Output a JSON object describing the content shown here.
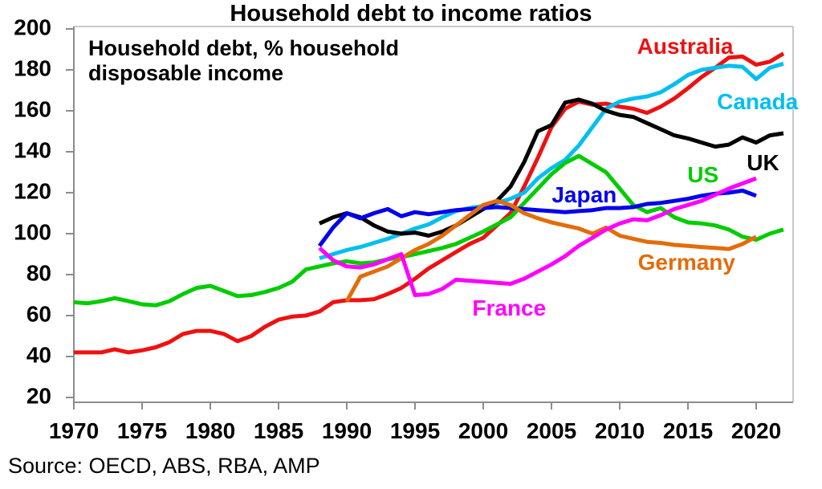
{
  "title": "Household debt to income ratios",
  "subtitle": {
    "line1": "Household debt, % household",
    "line2": "disposable income"
  },
  "source": "Source: OECD, ABS, RBA, AMP",
  "chart_data": {
    "type": "line",
    "title": "Household debt to income ratios",
    "annotation": "Household debt, % household disposable income",
    "xlabel": "",
    "ylabel": "Household debt, % household disposable income",
    "xlim": [
      1970,
      2022.7
    ],
    "ylim": [
      20,
      200
    ],
    "x_ticks": [
      1970,
      1975,
      1980,
      1985,
      1990,
      1995,
      2000,
      2005,
      2010,
      2015,
      2020
    ],
    "y_ticks": [
      20,
      40,
      60,
      80,
      100,
      120,
      140,
      160,
      180,
      200
    ],
    "grid": false,
    "legend_position": "inline-labels",
    "axis_color": "#8c8c8c",
    "border_color": "#c9c9c9",
    "series": [
      {
        "name": "Australia",
        "color": "#EE1111",
        "start_year": 1970,
        "label": {
          "year": 2014.8,
          "value": 191.5
        },
        "values": [
          42,
          42,
          42,
          43.5,
          42,
          43,
          44.5,
          47,
          51,
          52.5,
          52.5,
          51,
          47.5,
          50,
          54.5,
          58,
          59.5,
          60,
          62,
          66.5,
          67.5,
          67.5,
          68,
          70.5,
          73.5,
          78,
          83,
          87,
          91,
          95,
          98,
          104,
          110,
          123,
          137,
          152,
          161,
          164.5,
          163,
          163.5,
          162,
          161,
          159,
          162,
          166,
          171,
          176.5,
          181,
          186,
          186.5,
          182.5,
          184,
          188
        ]
      },
      {
        "name": "Canada",
        "color": "#00BFF0",
        "start_year": 1988,
        "label": {
          "year": 2020.1,
          "value": 164.5
        },
        "values": [
          88,
          90,
          92,
          93.5,
          95.5,
          97.5,
          100,
          102.5,
          104.5,
          108,
          111,
          112.5,
          113.5,
          115,
          117,
          120,
          127,
          132,
          136,
          143,
          152,
          161,
          164.5,
          166,
          167,
          169,
          173,
          177.5,
          180,
          181,
          182,
          181.5,
          175.5,
          181,
          183
        ]
      },
      {
        "name": "UK",
        "color": "#000000",
        "start_year": 1988,
        "label": {
          "year": 2020.5,
          "value": 134.5
        },
        "values": [
          105,
          108,
          110,
          108,
          104,
          101,
          100,
          100.5,
          99,
          101,
          104,
          108,
          112,
          116,
          123,
          135,
          150,
          153,
          164,
          165.5,
          163.5,
          160,
          158,
          157,
          154,
          151,
          148,
          146.5,
          144.5,
          142.5,
          143.5,
          147,
          144.5,
          148,
          149
        ]
      },
      {
        "name": "US",
        "color": "#00CC00",
        "start_year": 1970,
        "label": {
          "year": 2016.1,
          "value": 128.5
        },
        "values": [
          66.5,
          66,
          67,
          68.5,
          67,
          65.5,
          65,
          67,
          70.5,
          73.5,
          74.5,
          72,
          69.5,
          70,
          71.5,
          73.5,
          76.5,
          82.5,
          84,
          85.5,
          86.5,
          85.5,
          86,
          87.5,
          88.5,
          90,
          91.5,
          93,
          95,
          98,
          101,
          104.5,
          108,
          115,
          122,
          129,
          134.5,
          138,
          134,
          130,
          122,
          114,
          110.5,
          112.5,
          108,
          105.5,
          105,
          104,
          102,
          98.5,
          97,
          100,
          102
        ]
      },
      {
        "name": "Japan",
        "color": "#0000EE",
        "start_year": 1988,
        "label": {
          "year": 2007.4,
          "value": 118.8
        },
        "values": [
          94,
          103,
          110,
          107.5,
          110,
          112,
          108.5,
          110.5,
          109.5,
          110.5,
          111.5,
          112,
          112.5,
          113,
          112.5,
          112,
          111.5,
          111,
          110.5,
          111,
          111.5,
          112.5,
          112.5,
          113,
          114.5,
          115,
          116,
          117,
          118.5,
          119.5,
          120,
          121,
          118.5
        ]
      },
      {
        "name": "Germany",
        "color": "#E36C0A",
        "start_year": 1990,
        "label": {
          "year": 2014.9,
          "value": 85.9
        },
        "values": [
          67,
          79,
          81.5,
          84,
          88,
          92,
          95,
          99,
          104,
          109,
          114,
          116,
          114,
          110,
          107.5,
          105.5,
          104,
          102.5,
          100,
          103,
          99,
          97.5,
          96,
          95.5,
          94.5,
          94,
          93.5,
          93,
          92.5,
          95,
          98.5
        ]
      },
      {
        "name": "France",
        "color": "#FF00FF",
        "start_year": 1988,
        "label": {
          "year": 2001.9,
          "value": 63.5
        },
        "values": [
          93,
          87,
          84,
          83.5,
          85,
          87.5,
          90,
          70,
          70.5,
          73,
          77.5,
          77,
          76.5,
          76,
          75.5,
          78,
          81.5,
          85,
          89,
          94,
          98,
          102,
          105,
          107,
          106.5,
          109,
          112,
          114,
          116,
          119,
          122,
          124.5,
          127
        ]
      }
    ]
  }
}
